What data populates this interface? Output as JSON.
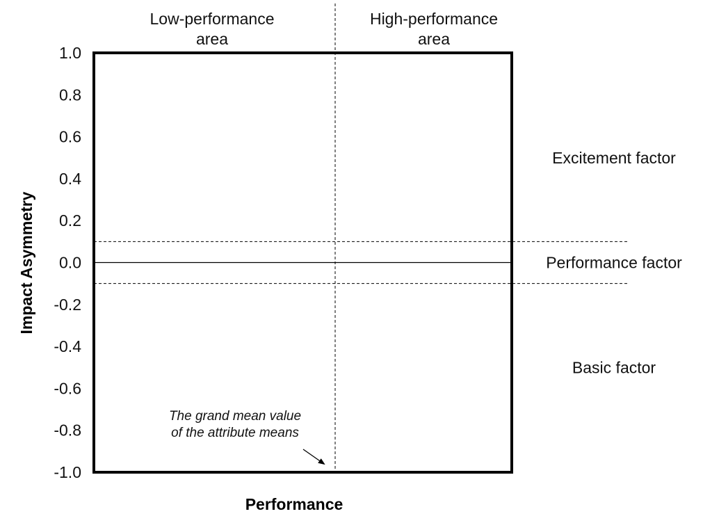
{
  "chart_data": {
    "type": "quadrant",
    "xlabel": "Performance",
    "ylabel": "Impact Asymmetry",
    "ylim": [
      -1.0,
      1.0
    ],
    "yticks": [
      "1.0",
      "0.8",
      "0.6",
      "0.4",
      "0.2",
      "0.0",
      "-0.2",
      "-0.4",
      "-0.6",
      "-0.8",
      "-1.0"
    ],
    "ytick_values": [
      1.0,
      0.8,
      0.6,
      0.4,
      0.2,
      0.0,
      -0.2,
      -0.4,
      -0.6,
      -0.8,
      -1.0
    ],
    "threshold_lines": [
      0.1,
      -0.1
    ],
    "zero_line": 0.0,
    "areas": [
      {
        "line1": "Low-performance",
        "line2": "area"
      },
      {
        "line1": "High-performance",
        "line2": "area"
      }
    ],
    "factors": [
      {
        "label": "Excitement factor",
        "y": 0.5
      },
      {
        "label": "Performance factor",
        "y": 0.0
      },
      {
        "label": "Basic factor",
        "y": -0.5
      }
    ],
    "annotation": {
      "line1": "The grand mean value",
      "line2": "of the attribute means"
    },
    "grid": false
  }
}
